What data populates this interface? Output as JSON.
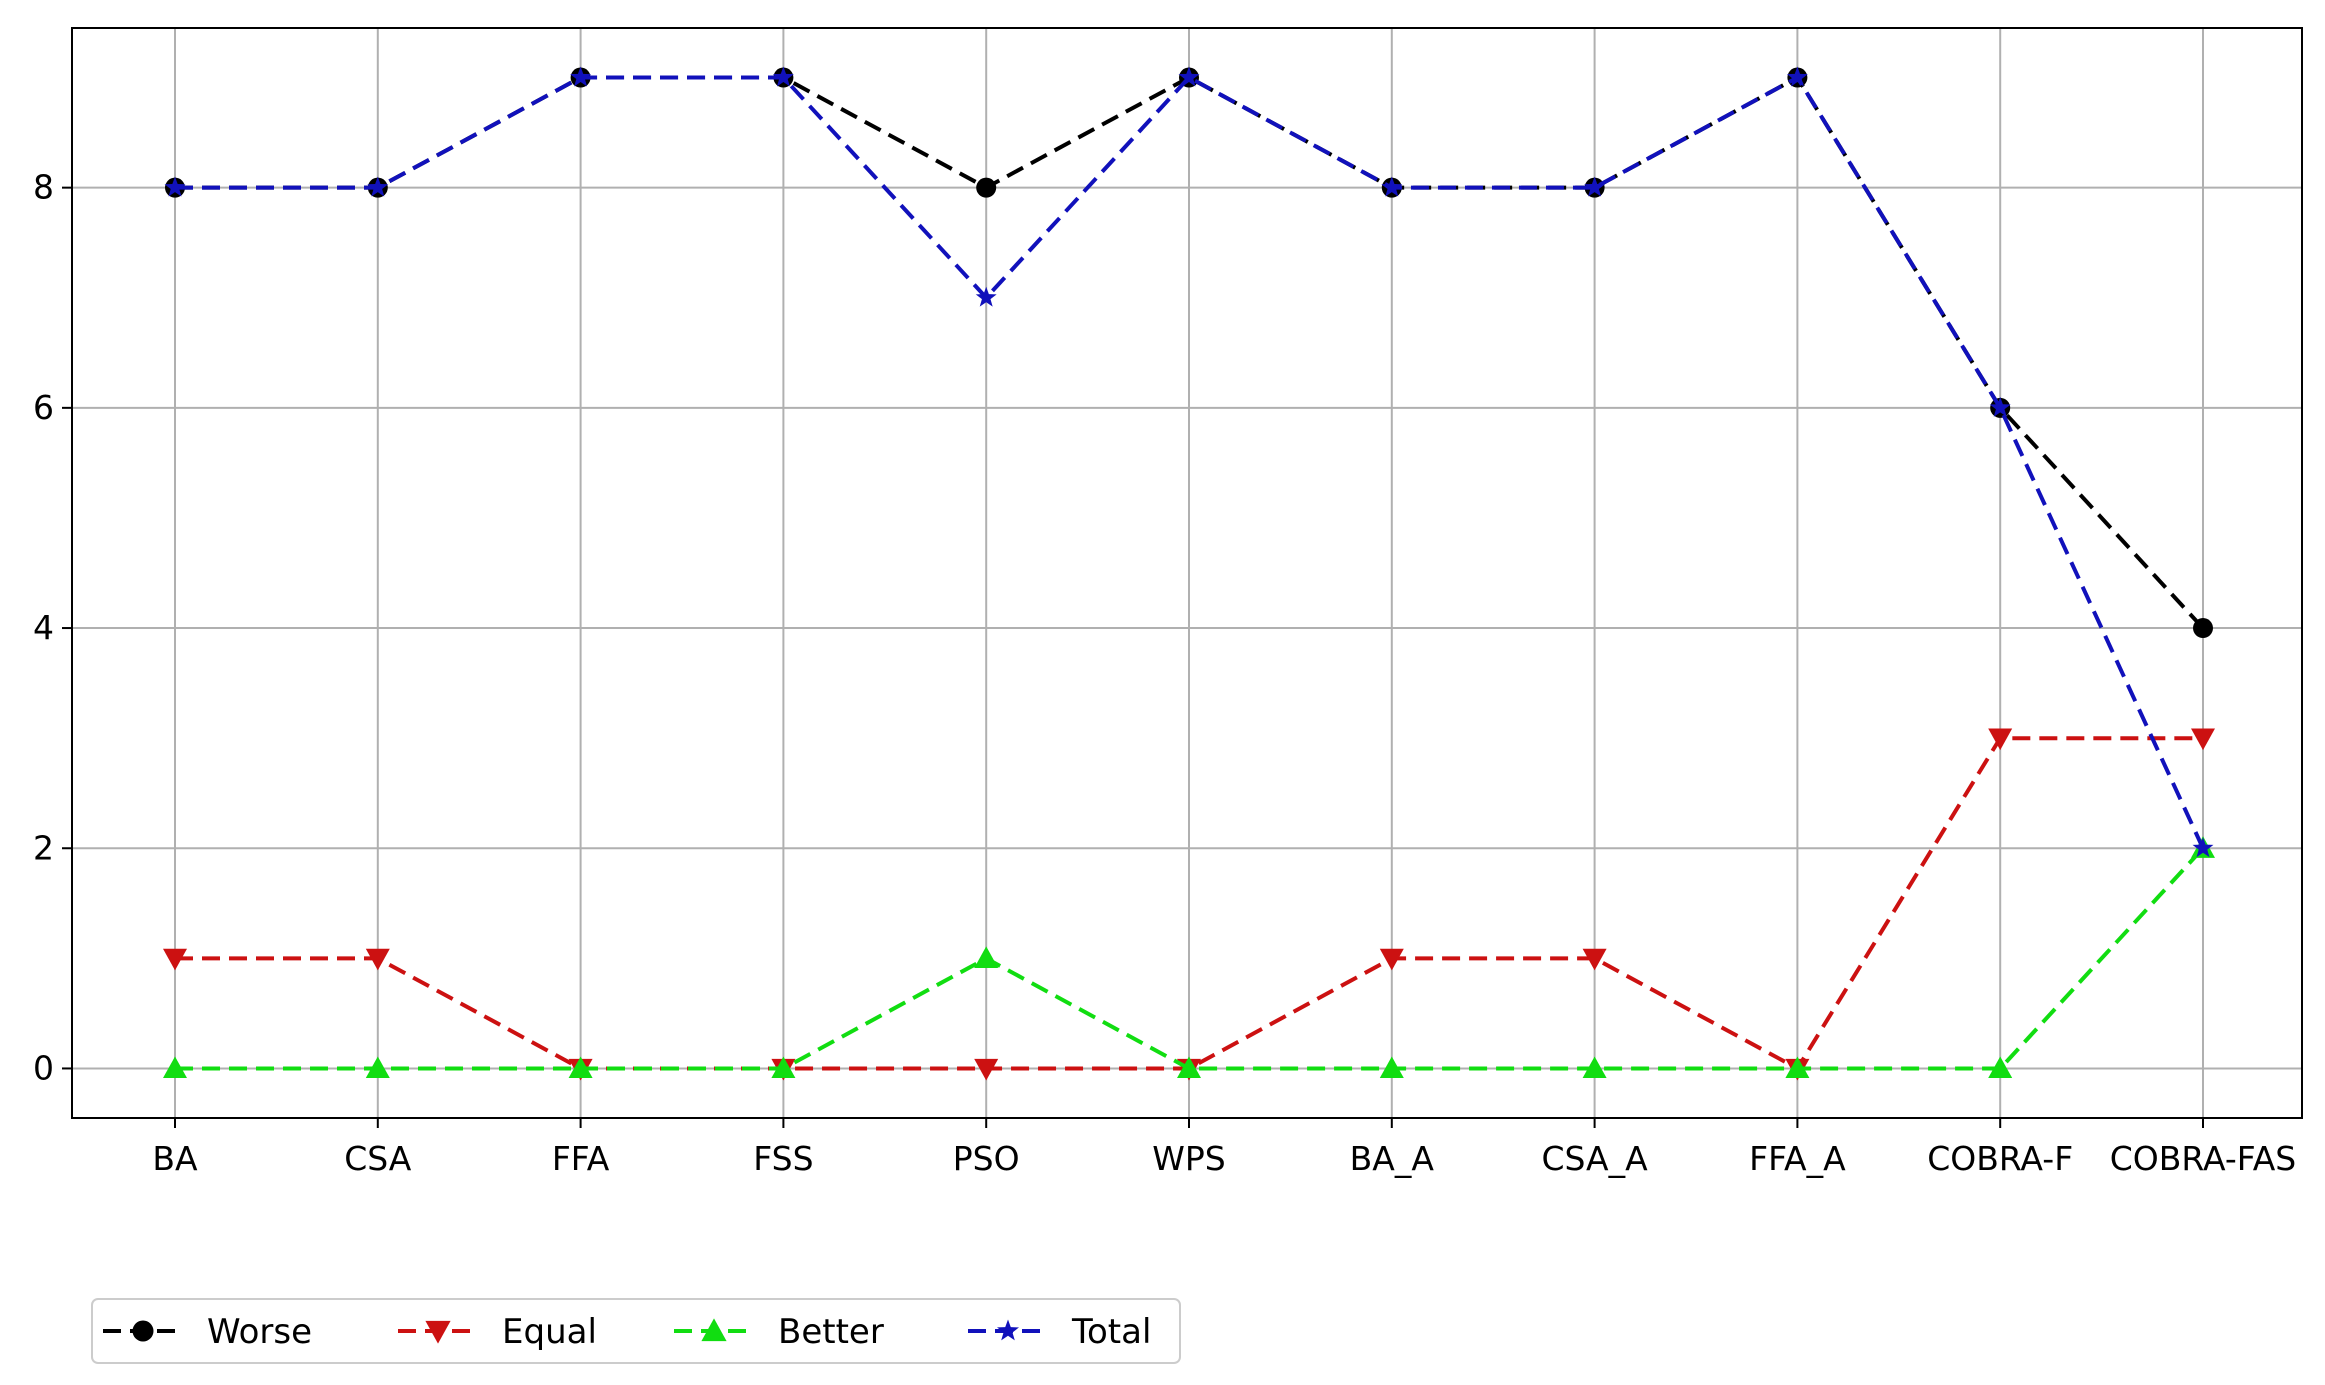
{
  "chart_data": {
    "type": "line",
    "title": "",
    "xlabel": "",
    "ylabel": "",
    "categories": [
      "BA",
      "CSA",
      "FFA",
      "FSS",
      "PSO",
      "WPS",
      "BA_A",
      "CSA_A",
      "FFA_A",
      "COBRA-F",
      "COBRA-FAS"
    ],
    "ylim": [
      -0.45,
      9.45
    ],
    "yticks": [
      0,
      2,
      4,
      6,
      8
    ],
    "grid": true,
    "legend_position": "bottom-left, below plot",
    "series": [
      {
        "name": "Worse",
        "color": "#000000",
        "marker": "circle",
        "linestyle": "dashed",
        "values": [
          8,
          8,
          9,
          9,
          8,
          9,
          8,
          8,
          9,
          6,
          4
        ]
      },
      {
        "name": "Equal",
        "color": "#cc1111",
        "marker": "triangle-down",
        "linestyle": "dashed",
        "values": [
          1,
          1,
          0,
          0,
          0,
          0,
          1,
          1,
          0,
          3,
          3
        ]
      },
      {
        "name": "Better",
        "color": "#11dd11",
        "marker": "triangle-up",
        "linestyle": "dashed",
        "values": [
          0,
          0,
          0,
          0,
          1,
          0,
          0,
          0,
          0,
          0,
          2
        ]
      },
      {
        "name": "Total",
        "color": "#1111bb",
        "marker": "star",
        "linestyle": "dashed",
        "values": [
          8,
          8,
          9,
          9,
          7,
          9,
          8,
          8,
          9,
          6,
          2
        ]
      }
    ]
  }
}
